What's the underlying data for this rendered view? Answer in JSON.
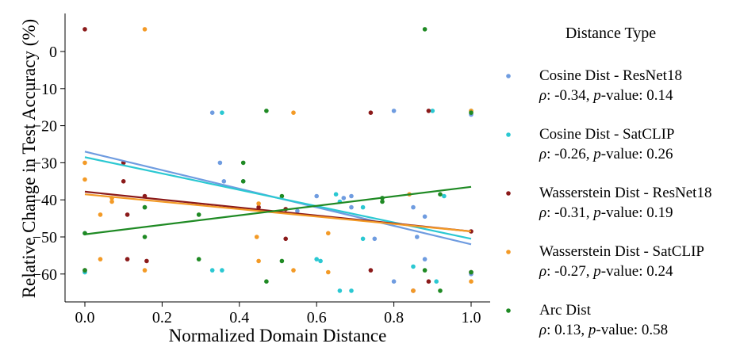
{
  "chart_data": {
    "type": "scatter",
    "title": "",
    "xlabel": "Normalized Domain Distance",
    "ylabel": "Relative Change in Test Accuracy (%)",
    "xlim": [
      -0.05,
      1.05
    ],
    "ylim": [
      -66,
      8
    ],
    "xticks": [
      0.0,
      0.2,
      0.4,
      0.6,
      0.8,
      1.0
    ],
    "xtick_labels": [
      "0.0",
      "0.2",
      "0.4",
      "0.6",
      "0.8",
      "1.0"
    ],
    "yticks": [
      0,
      -10,
      -20,
      -30,
      -40,
      -50,
      -60
    ],
    "ytick_labels": [
      "0",
      "−10",
      "−20",
      "−30",
      "−40",
      "−50",
      "−60"
    ],
    "grid": false,
    "legend_title": "Distance Type",
    "legend_position": "right",
    "series": [
      {
        "name": "Cosine Dist - ResNet18",
        "stat_prefix": ": -0.34, ",
        "stat_suffix": "-value: 0.14",
        "color": "#6f9ce0",
        "fit": [
          [
            0.0,
            -27
          ],
          [
            1.0,
            -52
          ]
        ],
        "points": [
          [
            0.0,
            -59.5
          ],
          [
            0.0,
            -49
          ],
          [
            0.1,
            -30
          ],
          [
            0.155,
            -42
          ],
          [
            0.33,
            -16.5
          ],
          [
            0.35,
            -30
          ],
          [
            0.36,
            -35
          ],
          [
            0.41,
            -35
          ],
          [
            0.55,
            -43
          ],
          [
            0.6,
            -39
          ],
          [
            0.67,
            -39.5
          ],
          [
            0.69,
            -39
          ],
          [
            0.69,
            -42
          ],
          [
            0.75,
            -50.5
          ],
          [
            0.8,
            -16
          ],
          [
            0.8,
            -62
          ],
          [
            0.85,
            -42
          ],
          [
            0.86,
            -50
          ],
          [
            0.88,
            -56
          ],
          [
            0.88,
            -44.5
          ],
          [
            1.0,
            -17
          ],
          [
            1.0,
            -60
          ]
        ]
      },
      {
        "name": "Cosine Dist - SatCLIP",
        "stat_prefix": ": -0.26, ",
        "stat_suffix": "-value: 0.26",
        "color": "#2bc8d2",
        "fit": [
          [
            0.0,
            -28.5
          ],
          [
            1.0,
            -50.5
          ]
        ],
        "points": [
          [
            0.0,
            -59.5
          ],
          [
            0.33,
            -59
          ],
          [
            0.355,
            -16.5
          ],
          [
            0.355,
            -59
          ],
          [
            0.6,
            -56
          ],
          [
            0.61,
            -56.5
          ],
          [
            0.65,
            -38.5
          ],
          [
            0.66,
            -40.5
          ],
          [
            0.66,
            -64.5
          ],
          [
            0.69,
            -64.5
          ],
          [
            0.72,
            -42
          ],
          [
            0.72,
            -50.5
          ],
          [
            0.85,
            -58
          ],
          [
            0.9,
            -16
          ],
          [
            0.91,
            -62
          ],
          [
            0.93,
            -39
          ],
          [
            1.0,
            -16
          ]
        ]
      },
      {
        "name": "Wasserstein Dist - ResNet18",
        "stat_prefix": ": -0.31, ",
        "stat_suffix": "-value: 0.19",
        "color": "#8b1a1a",
        "fit": [
          [
            0.0,
            -37.8
          ],
          [
            1.0,
            -48.5
          ]
        ],
        "points": [
          [
            0.0,
            6
          ],
          [
            0.0,
            -59
          ],
          [
            0.1,
            -30
          ],
          [
            0.1,
            -35
          ],
          [
            0.11,
            -44
          ],
          [
            0.11,
            -56
          ],
          [
            0.155,
            -39
          ],
          [
            0.16,
            -56.5
          ],
          [
            0.45,
            -42
          ],
          [
            0.52,
            -42.5
          ],
          [
            0.52,
            -50.5
          ],
          [
            0.74,
            -16.5
          ],
          [
            0.74,
            -59
          ],
          [
            0.85,
            -64.5
          ],
          [
            0.89,
            -16
          ],
          [
            0.89,
            -62
          ],
          [
            1.0,
            -48.5
          ],
          [
            1.0,
            -59.5
          ]
        ]
      },
      {
        "name": "Wasserstein Dist - SatCLIP",
        "stat_prefix": ": -0.27, ",
        "stat_suffix": "-value: 0.24",
        "color": "#f39a26",
        "fit": [
          [
            0.0,
            -38.5
          ],
          [
            1.0,
            -48.5
          ]
        ],
        "points": [
          [
            0.0,
            -30
          ],
          [
            0.0,
            -34.5
          ],
          [
            0.04,
            -44
          ],
          [
            0.04,
            -56
          ],
          [
            0.07,
            -39.5
          ],
          [
            0.07,
            -40.5
          ],
          [
            0.155,
            6
          ],
          [
            0.155,
            -59
          ],
          [
            0.445,
            -50
          ],
          [
            0.45,
            -41
          ],
          [
            0.45,
            -56.5
          ],
          [
            0.54,
            -16.5
          ],
          [
            0.54,
            -59
          ],
          [
            0.63,
            -49
          ],
          [
            0.63,
            -59.5
          ],
          [
            0.84,
            -38.5
          ],
          [
            0.85,
            -64.5
          ],
          [
            1.0,
            -16
          ],
          [
            1.0,
            -62
          ]
        ]
      },
      {
        "name": "Arc Dist",
        "stat_prefix": ": 0.13, ",
        "stat_suffix": "-value: 0.58",
        "color": "#1f8a24",
        "fit": [
          [
            0.0,
            -49.3
          ],
          [
            1.0,
            -36.5
          ]
        ],
        "points": [
          [
            0.0,
            -49
          ],
          [
            0.0,
            -59
          ],
          [
            0.155,
            -42
          ],
          [
            0.155,
            -50
          ],
          [
            0.295,
            -44
          ],
          [
            0.295,
            -56
          ],
          [
            0.41,
            -30
          ],
          [
            0.41,
            -35
          ],
          [
            0.47,
            -16
          ],
          [
            0.47,
            -62
          ],
          [
            0.51,
            -39
          ],
          [
            0.51,
            -56.5
          ],
          [
            0.77,
            -39.5
          ],
          [
            0.77,
            -40.5
          ],
          [
            0.88,
            6
          ],
          [
            0.88,
            -59
          ],
          [
            0.92,
            -38.5
          ],
          [
            0.92,
            -64.5
          ],
          [
            1.0,
            -16.5
          ],
          [
            1.0,
            -59.5
          ]
        ]
      }
    ]
  }
}
